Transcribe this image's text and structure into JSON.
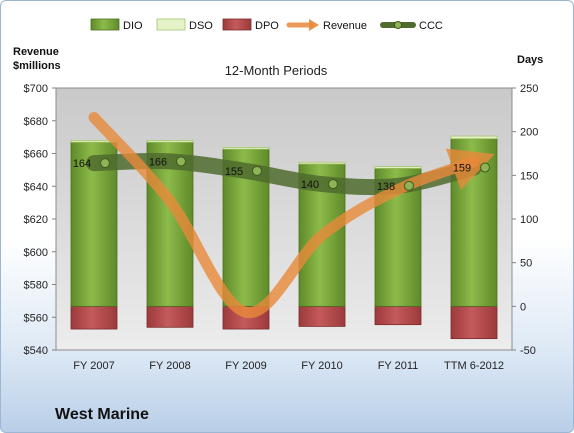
{
  "company_name": "West Marine",
  "chart_data": {
    "type": "bar",
    "title": "12-Month Periods",
    "categories": [
      "FY 2007",
      "FY 2008",
      "FY 2009",
      "FY 2010",
      "FY 2011",
      "TTM 6-2012"
    ],
    "left_axis": {
      "label_line1": "Revenue",
      "label_line2": "$millions",
      "ylim": [
        540,
        700
      ],
      "ticks": [
        540,
        560,
        580,
        600,
        620,
        640,
        660,
        680,
        700
      ],
      "tick_labels": [
        "$540",
        "$560",
        "$580",
        "$600",
        "$620",
        "$640",
        "$660",
        "$680",
        "$700"
      ]
    },
    "right_axis": {
      "label": "Days",
      "ylim": [
        -50,
        250
      ],
      "ticks": [
        -50,
        0,
        50,
        100,
        150,
        200,
        250
      ],
      "tick_labels": [
        "-50",
        "0",
        "50",
        "100",
        "150",
        "200",
        "250"
      ]
    },
    "legend_position": "top",
    "grid": false,
    "series": [
      {
        "name": "DIO",
        "axis": "right",
        "kind": "bar",
        "color": "#76a33a",
        "values": [
          188,
          188,
          180,
          163,
          158,
          192
        ]
      },
      {
        "name": "DSO",
        "axis": "right",
        "kind": "bar",
        "color": "#e4f2c8",
        "values": [
          2,
          2,
          2,
          2,
          2,
          3
        ]
      },
      {
        "name": "DPO",
        "axis": "right",
        "kind": "bar",
        "color": "#b94b4c",
        "values": [
          -26,
          -24,
          -26,
          -23,
          -21,
          -37
        ]
      },
      {
        "name": "Revenue",
        "axis": "left",
        "kind": "line",
        "color": "#e8893a",
        "values": [
          682,
          631,
          563,
          610,
          638,
          655
        ]
      },
      {
        "name": "CCC",
        "axis": "right",
        "kind": "line",
        "color": "#4f6b2e",
        "values": [
          164,
          166,
          155,
          140,
          138,
          159
        ]
      }
    ],
    "ccc_labels": [
      "164",
      "166",
      "155",
      "140",
      "138",
      "159"
    ]
  }
}
